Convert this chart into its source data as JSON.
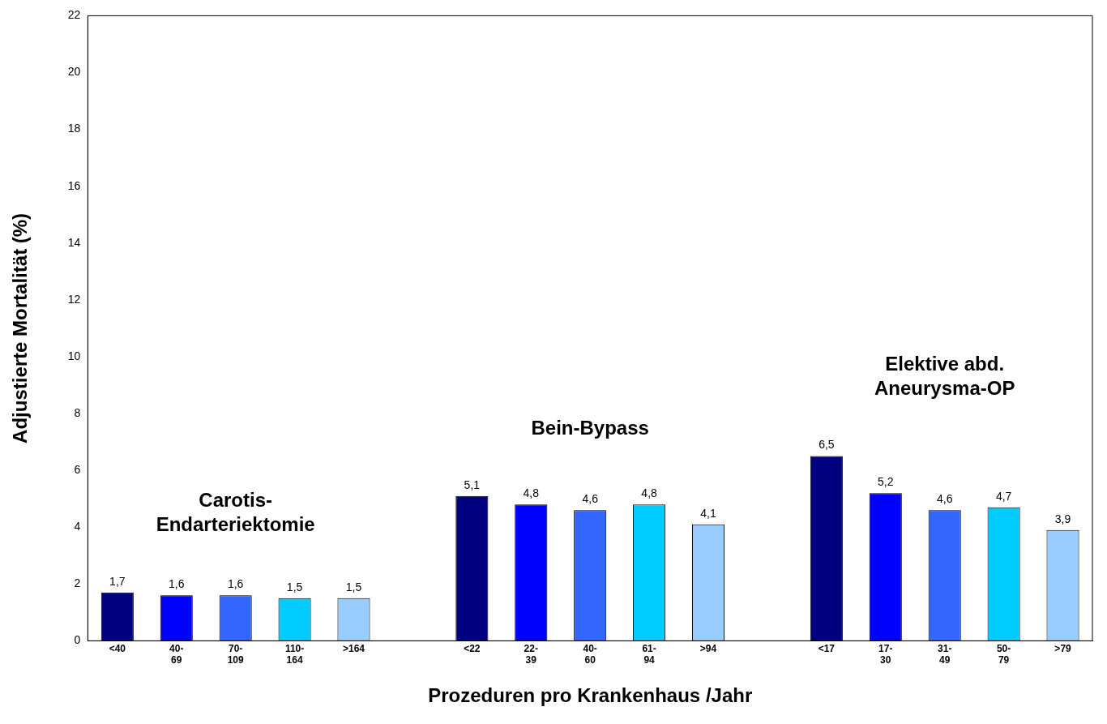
{
  "chart_data": {
    "type": "bar",
    "xlabel": "Prozeduren pro Krankenhaus /Jahr",
    "ylabel": "Adjustierte Mortalität (%)",
    "categories": [
      "<40",
      "40-\n69",
      "70-\n109",
      "110-\n164",
      ">164",
      null,
      "<22",
      "22-\n39",
      "40-\n60",
      "61-\n94",
      ">94",
      null,
      "<17",
      "17-\n30",
      "31-\n49",
      "50-\n79",
      ">79"
    ],
    "values": [
      1.7,
      1.6,
      1.6,
      1.5,
      1.5,
      null,
      5.1,
      4.8,
      4.6,
      4.8,
      4.1,
      null,
      6.5,
      5.2,
      4.6,
      4.7,
      3.9
    ],
    "value_labels": [
      "1,7",
      "1,6",
      "1,6",
      "1,5",
      "1,5",
      null,
      "5,1",
      "4,8",
      "4,6",
      "4,8",
      "4,1",
      null,
      "6,5",
      "5,2",
      "4,6",
      "4,7",
      "3,9"
    ],
    "colors": [
      "#000080",
      "#0000ff",
      "#3366ff",
      "#00ccff",
      "#99ccff",
      null,
      "#000080",
      "#0000ff",
      "#3366ff",
      "#00ccff",
      "#99ccff",
      null,
      "#000080",
      "#0000ff",
      "#3366ff",
      "#00ccff",
      "#99ccff"
    ],
    "ylim": [
      0,
      22
    ],
    "yticks": [
      0,
      2,
      4,
      6,
      8,
      10,
      12,
      14,
      16,
      18,
      20,
      22
    ],
    "grid": false,
    "legend": false,
    "annotations": [
      "Carotis-\nEndarteriektomie",
      "Bein-Bypass",
      "Elektive abd.\nAneurysma-OP"
    ]
  }
}
